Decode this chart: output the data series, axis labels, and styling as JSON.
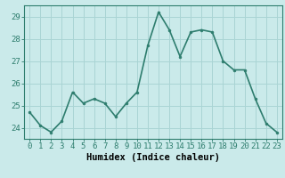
{
  "x": [
    0,
    1,
    2,
    3,
    4,
    5,
    6,
    7,
    8,
    9,
    10,
    11,
    12,
    13,
    14,
    15,
    16,
    17,
    18,
    19,
    20,
    21,
    22,
    23
  ],
  "y": [
    24.7,
    24.1,
    23.8,
    24.3,
    25.6,
    25.1,
    25.3,
    25.1,
    24.5,
    25.1,
    25.6,
    27.7,
    29.2,
    28.4,
    27.2,
    28.3,
    28.4,
    28.3,
    27.0,
    26.6,
    26.6,
    25.3,
    24.2,
    23.8
  ],
  "line_color": "#2e7d6e",
  "marker": "o",
  "marker_size": 2,
  "bg_color": "#caeaea",
  "grid_color": "#aad4d4",
  "xlabel": "Humidex (Indice chaleur)",
  "ylim_min": 23.5,
  "ylim_max": 29.5,
  "xlim_min": -0.5,
  "xlim_max": 23.5,
  "yticks": [
    24,
    25,
    26,
    27,
    28,
    29
  ],
  "xticks": [
    0,
    1,
    2,
    3,
    4,
    5,
    6,
    7,
    8,
    9,
    10,
    11,
    12,
    13,
    14,
    15,
    16,
    17,
    18,
    19,
    20,
    21,
    22,
    23
  ],
  "xlabel_fontsize": 7.5,
  "tick_fontsize": 6.5,
  "line_width": 1.2
}
